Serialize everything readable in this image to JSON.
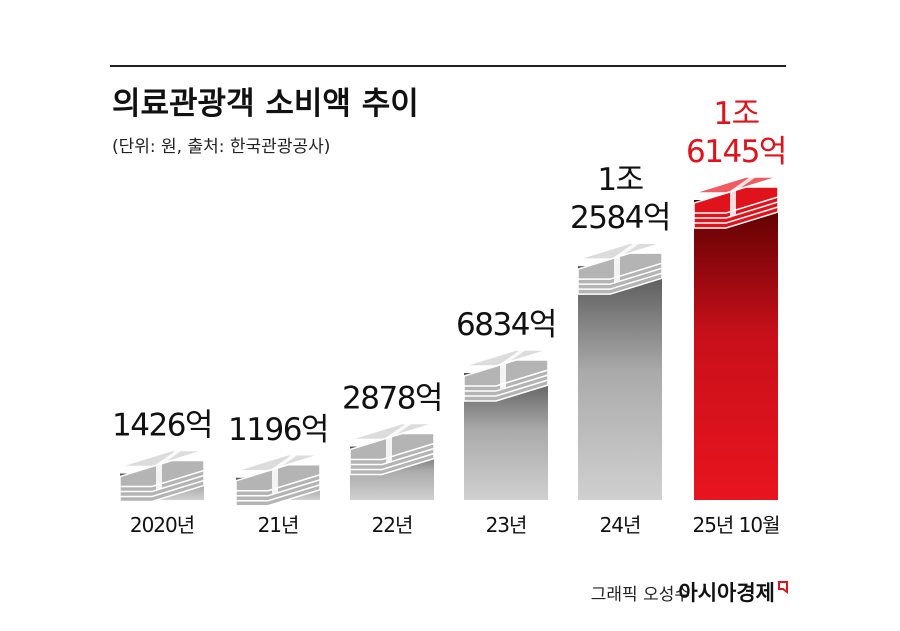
{
  "chart_data": {
    "type": "bar",
    "title": "의료관광객 소비액 추이",
    "subtitle": "(단위: 원, 출처: 한국관광공사)",
    "categories": [
      "2020년",
      "21년",
      "22년",
      "23년",
      "24년",
      "25년 10월"
    ],
    "values": [
      1426,
      1196,
      2878,
      6834,
      12584,
      16145
    ],
    "value_labels": [
      [
        "1426억"
      ],
      [
        "1196억"
      ],
      [
        "2878억"
      ],
      [
        "6834억"
      ],
      [
        "1조",
        "2584억"
      ],
      [
        "1조",
        "6145억"
      ]
    ],
    "colors": [
      "#9a9a9a",
      "#9a9a9a",
      "#9a9a9a",
      "#9a9a9a",
      "#9a9a9a",
      "#e0121b"
    ],
    "credit": "그래픽 오성수",
    "source_brand": "아시아경제"
  }
}
